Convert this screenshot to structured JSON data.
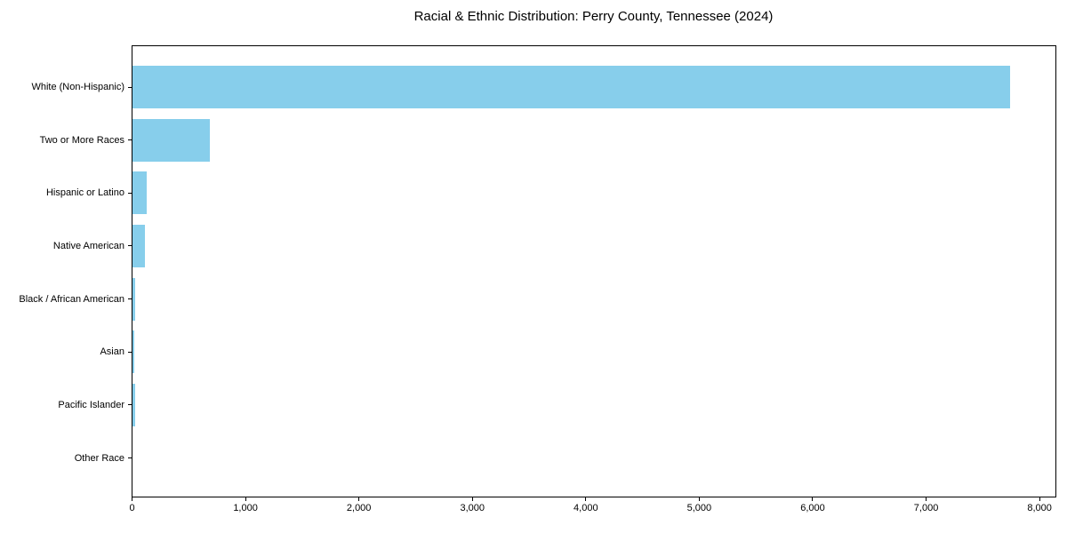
{
  "chart_data": {
    "type": "bar",
    "orientation": "horizontal",
    "title": "Racial & Ethnic Distribution: Perry County, Tennessee (2024)",
    "categories": [
      "White (Non-Hispanic)",
      "Two or More Races",
      "Hispanic or Latino",
      "Native American",
      "Black / African American",
      "Asian",
      "Pacific Islander",
      "Other Race"
    ],
    "values": [
      7740,
      680,
      125,
      110,
      27,
      16,
      22,
      0
    ],
    "xlabel": "",
    "ylabel": "",
    "xlim": [
      0,
      8140
    ],
    "x_ticks": [
      0,
      1000,
      2000,
      3000,
      4000,
      5000,
      6000,
      7000,
      8000
    ],
    "x_tick_labels": [
      "0",
      "1,000",
      "2,000",
      "3,000",
      "4,000",
      "5,000",
      "6,000",
      "7,000",
      "8,000"
    ],
    "bar_color": "#87ceeb",
    "frame_color": "#000000",
    "text_color": "#000000",
    "background_color": "#ffffff",
    "grid": false,
    "legend": null
  }
}
